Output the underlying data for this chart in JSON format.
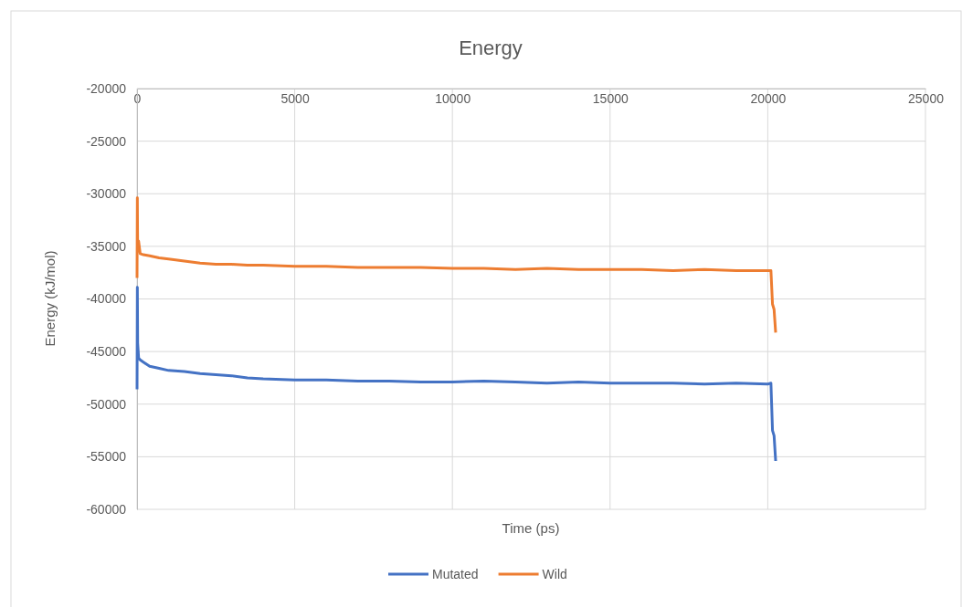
{
  "chart_data": {
    "type": "line",
    "title": "Energy",
    "xlabel": "Time (ps)",
    "ylabel": "Energy (kJ/mol)",
    "xlim": [
      0,
      25000
    ],
    "xticks": [
      0,
      5000,
      10000,
      15000,
      20000,
      25000
    ],
    "ylim": [
      -60000,
      -20000
    ],
    "yticks": [
      -60000,
      -55000,
      -50000,
      -45000,
      -40000,
      -35000,
      -30000,
      -25000,
      -20000
    ],
    "grid": true,
    "legend": "bottom",
    "marker": "none",
    "line_style": "solid",
    "series": [
      {
        "name": "Mutated",
        "color": "#4472c4",
        "x": [
          0,
          10,
          20,
          50,
          100,
          200,
          400,
          700,
          1000,
          1500,
          2000,
          2500,
          3000,
          3500,
          4000,
          5000,
          6000,
          7000,
          8000,
          9000,
          10000,
          11000,
          12000,
          13000,
          14000,
          15000,
          16000,
          17000,
          18000,
          19000,
          20000,
          20100,
          20150,
          20200,
          20250
        ],
        "values": [
          -48600,
          -38900,
          -44200,
          -45600,
          -45800,
          -46000,
          -46400,
          -46600,
          -46800,
          -46900,
          -47100,
          -47200,
          -47300,
          -47500,
          -47600,
          -47700,
          -47700,
          -47800,
          -47800,
          -47900,
          -47900,
          -47800,
          -47900,
          -48000,
          -47900,
          -48000,
          -48000,
          -48000,
          -48100,
          -48000,
          -48100,
          -48000,
          -52500,
          -53000,
          -55400
        ]
      },
      {
        "name": "Wild",
        "color": "#ed7d31",
        "x": [
          0,
          10,
          20,
          50,
          100,
          200,
          400,
          700,
          1000,
          1500,
          2000,
          2500,
          3000,
          3500,
          4000,
          5000,
          6000,
          7000,
          8000,
          9000,
          10000,
          11000,
          12000,
          13000,
          14000,
          15000,
          16000,
          17000,
          18000,
          19000,
          20000,
          20100,
          20150,
          20200,
          20250
        ],
        "values": [
          -38000,
          -30400,
          -35500,
          -34500,
          -35700,
          -35800,
          -35900,
          -36100,
          -36200,
          -36400,
          -36600,
          -36700,
          -36700,
          -36800,
          -36800,
          -36900,
          -36900,
          -37000,
          -37000,
          -37000,
          -37100,
          -37100,
          -37200,
          -37100,
          -37200,
          -37200,
          -37200,
          -37300,
          -37200,
          -37300,
          -37300,
          -37300,
          -40500,
          -41000,
          -43200
        ]
      }
    ]
  }
}
